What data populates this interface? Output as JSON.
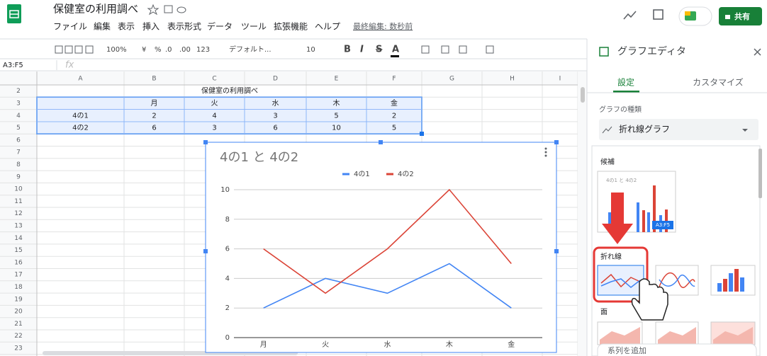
{
  "header": {
    "title": "保健室の利用調べ",
    "menu": [
      "ファイル",
      "編集",
      "表示",
      "挿入",
      "表示形式",
      "データ",
      "ツール",
      "拡張機能",
      "ヘルプ"
    ],
    "last_edit": "最終編集: 数秒前",
    "share": "共有"
  },
  "toolbar": {
    "items": [
      "100%",
      "¥",
      "%",
      ".0",
      ".00",
      "123",
      "デフォルト...",
      "10",
      "B",
      "I",
      "S",
      "A"
    ]
  },
  "formula_bar": {
    "name_box": "A3:F5",
    "fx": "fx"
  },
  "sheet": {
    "columns": [
      "A",
      "B",
      "C",
      "D",
      "E",
      "F",
      "G",
      "H",
      "I"
    ],
    "rows": [
      2,
      3,
      4,
      5,
      6,
      7,
      8,
      9,
      10,
      11,
      12,
      13,
      14,
      15,
      16,
      17,
      18,
      19,
      20,
      21,
      22,
      23
    ],
    "caption": "保健室の利用調べ",
    "table": [
      [
        "",
        "月",
        "火",
        "水",
        "木",
        "金"
      ],
      [
        "4の1",
        2,
        4,
        3,
        5,
        2
      ],
      [
        "4の2",
        6,
        3,
        6,
        10,
        5
      ]
    ]
  },
  "chart_data": {
    "type": "line",
    "title": "4の1 と 4の2",
    "categories": [
      "月",
      "火",
      "水",
      "木",
      "金"
    ],
    "series": [
      {
        "name": "4の1",
        "color": "#4285f4",
        "values": [
          2,
          4,
          3,
          5,
          2
        ]
      },
      {
        "name": "4の2",
        "color": "#db4437",
        "values": [
          6,
          3,
          6,
          10,
          5
        ]
      }
    ],
    "ylim": [
      0,
      10
    ],
    "yticks": [
      0,
      2,
      4,
      6,
      8,
      10
    ],
    "grid": true,
    "legend": "top"
  },
  "editor": {
    "title": "グラフエディタ",
    "tabs": [
      "設定",
      "カスタマイズ"
    ],
    "type_label": "グラフの種類",
    "type_value": "折れ線グラフ",
    "suggestions": "候補",
    "line_section": "折れ線",
    "area_section": "面",
    "add_series": "系列を追加"
  }
}
